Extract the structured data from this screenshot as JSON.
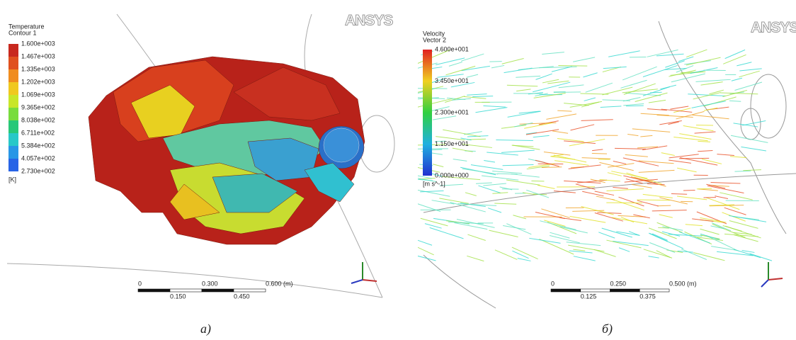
{
  "panels": [
    {
      "logo": "ANSYS",
      "legend": {
        "title": [
          "Temperature",
          "Contour 1"
        ],
        "labels": [
          "1.600e+003",
          "1.467e+003",
          "1.335e+003",
          "1.202e+003",
          "1.069e+003",
          "9.365e+002",
          "8.038e+002",
          "6.711e+002",
          "5.384e+002",
          "4.057e+002",
          "2.730e+002"
        ],
        "unit": "[K]"
      },
      "scale_bar": {
        "top_labels": [
          "0",
          "0.300",
          "0.600 (m)"
        ],
        "bottom_labels": [
          "0.150",
          "0.450"
        ]
      },
      "caption": "а)"
    },
    {
      "logo": "ANSYS",
      "legend": {
        "title": [
          "Velocity",
          "Vector 2"
        ],
        "labels": [
          "4.600e+001",
          "3.450e+001",
          "2.300e+001",
          "1.150e+001",
          "0.000e+000"
        ],
        "unit": "[m s^-1]"
      },
      "scale_bar": {
        "top_labels": [
          "0",
          "0.250",
          "0.500 (m)"
        ],
        "bottom_labels": [
          "0.125",
          "0.375"
        ]
      },
      "caption": "б)"
    }
  ]
}
